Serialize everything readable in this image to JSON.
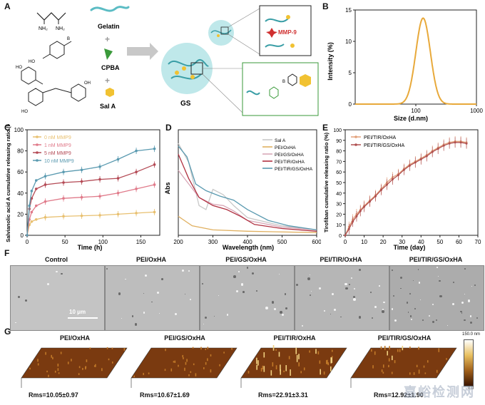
{
  "panels": {
    "a": "A",
    "b": "B",
    "c": "C",
    "d": "D",
    "e": "E",
    "f": "F",
    "g": "G"
  },
  "schematic": {
    "gelatin": "Gelatin",
    "cpba": "CPBA",
    "sala": "Sal A",
    "gs": "GS",
    "mmp": "MMP-9",
    "nh2a": "NH₂",
    "nh2b": "NH₂"
  },
  "colors": {
    "gelatin": "#5bbcc4",
    "cpba": "#3a9a3a",
    "sala": "#f1c232",
    "mmp": "#d03030",
    "sphere": "#bfe8ea"
  },
  "chart_data": [
    {
      "id": "B",
      "type": "line",
      "xlabel": "Size (d.nm)",
      "ylabel": "Intensity (%)",
      "xscale": "log",
      "xlim": [
        10,
        1000
      ],
      "ylim": [
        0,
        15
      ],
      "xticks": [
        "100",
        "1000"
      ],
      "yticks": [
        "0",
        "5",
        "10",
        "15"
      ],
      "series": [
        {
          "color": "#e8a93a",
          "peak_x": 132,
          "peak_y": 13.7,
          "width_log": 0.12
        }
      ]
    },
    {
      "id": "C",
      "type": "line",
      "xlabel": "Time (h)",
      "ylabel": "Salvianolic acid A cumulative releasing ratio (%)",
      "xlim": [
        0,
        175
      ],
      "ylim": [
        0,
        100
      ],
      "xticks": [
        "0",
        "50",
        "100",
        "150"
      ],
      "yticks": [
        "0",
        "20",
        "40",
        "60",
        "80",
        "100"
      ],
      "x": [
        0,
        3,
        6,
        12,
        24,
        48,
        72,
        96,
        120,
        144,
        168
      ],
      "series": [
        {
          "name": "0 nM MMP9",
          "color": "#e8c070",
          "values": [
            0,
            10,
            13,
            15,
            17,
            18,
            18.5,
            19,
            20,
            21,
            22
          ]
        },
        {
          "name": "1 nM MMP9",
          "color": "#e07a8a",
          "values": [
            0,
            15,
            22,
            28,
            32,
            35,
            36,
            37,
            40,
            44,
            48
          ]
        },
        {
          "name": "5 nM MMP9",
          "color": "#b44a55",
          "values": [
            0,
            25,
            35,
            44,
            48,
            50,
            51,
            53,
            54,
            60,
            67
          ]
        },
        {
          "name": "10 nM MMP9",
          "color": "#5a9ab0",
          "values": [
            0,
            28,
            42,
            52,
            56,
            60,
            62,
            65,
            72,
            80,
            82
          ]
        }
      ]
    },
    {
      "id": "D",
      "type": "line",
      "xlabel": "Wavelength (nm)",
      "ylabel": "Abs",
      "xlim": [
        200,
        600
      ],
      "xticks": [
        "200",
        "300",
        "400",
        "500",
        "600"
      ],
      "series": [
        {
          "name": "Sal A",
          "color": "#c8c8c8"
        },
        {
          "name": "PEI/OxHA",
          "color": "#e0b060"
        },
        {
          "name": "PEI/GS/OxHA",
          "color": "#d8a8b8"
        },
        {
          "name": "PEI/TIR/OxHA",
          "color": "#b03040"
        },
        {
          "name": "PEI/TIR/GS/OxHA",
          "color": "#5a9ab0"
        }
      ]
    },
    {
      "id": "E",
      "type": "line",
      "xlabel": "Time (day)",
      "ylabel": "Tirofiban cumulative releasing ratio (%)",
      "xlim": [
        0,
        70
      ],
      "ylim": [
        0,
        100
      ],
      "xticks": [
        "0",
        "10",
        "20",
        "30",
        "40",
        "50",
        "60",
        "70"
      ],
      "yticks": [
        "0",
        "10",
        "20",
        "30",
        "40",
        "50",
        "60",
        "70",
        "80",
        "90",
        "100"
      ],
      "x": [
        0,
        2,
        4,
        6,
        8,
        10,
        13,
        16,
        19,
        22,
        25,
        28,
        31,
        34,
        37,
        40,
        43,
        46,
        49,
        52,
        55,
        58,
        61,
        64
      ],
      "series": [
        {
          "name": "PEI/TIR/OxHA",
          "color": "#e2a17a",
          "values": [
            0,
            8,
            15,
            20,
            24,
            28,
            33,
            38,
            44,
            50,
            55,
            58,
            63,
            67,
            70,
            73,
            76,
            80,
            83,
            86,
            88,
            89,
            89,
            88
          ]
        },
        {
          "name": "PEI/TIR/GS/OxHA",
          "color": "#b05050",
          "values": [
            0,
            6,
            13,
            18,
            23,
            27,
            32,
            37,
            43,
            48,
            53,
            57,
            62,
            66,
            69,
            72,
            75,
            79,
            82,
            85,
            87,
            88,
            88,
            87
          ]
        }
      ]
    }
  ],
  "sem": {
    "titles": [
      "Control",
      "PEI/OxHA",
      "PEI/GS/OxHA",
      "PEI/TIR/OxHA",
      "PEI/TIR/GS/OxHA"
    ],
    "scalebar": "10 μm"
  },
  "afm": {
    "titles": [
      "PEI/OxHA",
      "PEI/GS/OxHA",
      "PEI/TIR/OxHA",
      "PEI/TIR/GS/OxHA"
    ],
    "rms": [
      "Rms=10.05±0.97",
      "Rms=10.67±1.69",
      "Rms=22.91±3.31",
      "Rms=12.92±1.90"
    ],
    "colorbar_top": "150.0 nm",
    "colorbar_bottom": "0.0"
  },
  "watermark": "嘉峪检测网"
}
